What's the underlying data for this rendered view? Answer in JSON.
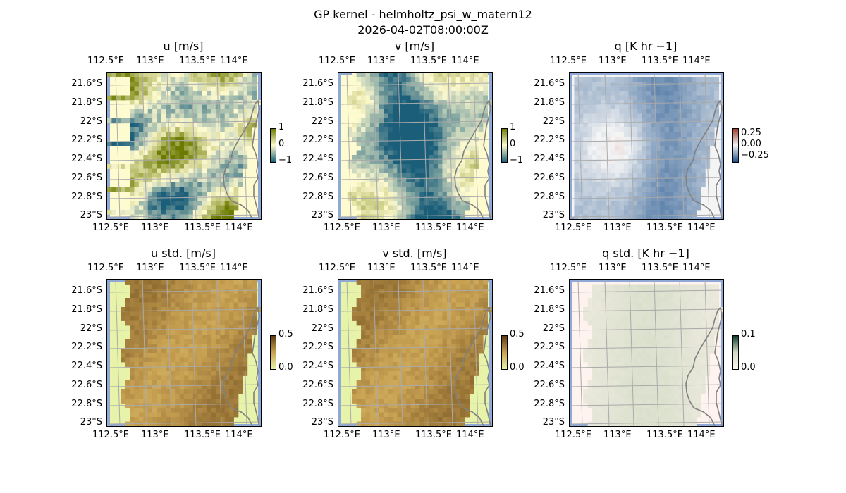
{
  "figure": {
    "title": "GP kernel - helmholtz_psi_w_matern12",
    "subtitle": "2026-04-02T08:00:00Z"
  },
  "chart_data": [
    {
      "type": "heatmap",
      "title": "u [m/s]",
      "lon_ticks": [
        "112.5°E",
        "113°E",
        "113.5°E",
        "114°E"
      ],
      "lat_ticks": [
        "21.6°S",
        "21.8°S",
        "22°S",
        "22.2°S",
        "22.4°S",
        "22.6°S",
        "22.8°S",
        "23°S"
      ],
      "colorbar": {
        "ticks": [
          "1",
          "0",
          "−1"
        ],
        "range": [
          -1,
          1
        ]
      },
      "colors": {
        "low": "#1b5e7a",
        "mid": "#fffbd0",
        "high": "#6b7a00"
      }
    },
    {
      "type": "heatmap",
      "title": "v [m/s]",
      "lon_ticks": [
        "112.5°E",
        "113°E",
        "113.5°E",
        "114°E"
      ],
      "lat_ticks": [
        "21.6°S",
        "21.8°S",
        "22°S",
        "22.2°S",
        "22.4°S",
        "22.6°S",
        "22.8°S",
        "23°S"
      ],
      "colorbar": {
        "ticks": [
          "1",
          "0",
          "−1"
        ],
        "range": [
          -1,
          1
        ]
      },
      "colors": {
        "low": "#1b5e7a",
        "mid": "#fffbd0",
        "high": "#6b7a00"
      }
    },
    {
      "type": "heatmap",
      "title": "q [K hr −1]",
      "lon_ticks": [
        "112.5°E",
        "113°E",
        "113.5°E",
        "114°E"
      ],
      "lat_ticks": [
        "21.6°S",
        "21.8°S",
        "22°S",
        "22.2°S",
        "22.4°S",
        "22.6°S",
        "22.8°S",
        "23°S"
      ],
      "colorbar": {
        "ticks": [
          "0.25",
          "0.00",
          "−0.25"
        ],
        "range": [
          -0.25,
          0.25
        ]
      },
      "colors": {
        "low": "#1b4f8a",
        "mid": "#f5f5f5",
        "high": "#a03a2a"
      }
    },
    {
      "type": "heatmap",
      "title": "u std. [m/s]",
      "lon_ticks": [
        "112.5°E",
        "113°E",
        "113.5°E",
        "114°E"
      ],
      "lat_ticks": [
        "21.6°S",
        "21.8°S",
        "22°S",
        "22.2°S",
        "22.4°S",
        "22.6°S",
        "22.8°S",
        "23°S"
      ],
      "colorbar": {
        "ticks": [
          "0.5",
          "0.0"
        ],
        "range": [
          0,
          0.5
        ]
      },
      "colors": {
        "low": "#e6f3a8",
        "mid": "#c9a253",
        "high": "#5a3a12"
      }
    },
    {
      "type": "heatmap",
      "title": "v std. [m/s]",
      "lon_ticks": [
        "112.5°E",
        "113°E",
        "113.5°E",
        "114°E"
      ],
      "lat_ticks": [
        "21.6°S",
        "21.8°S",
        "22°S",
        "22.2°S",
        "22.4°S",
        "22.6°S",
        "22.8°S",
        "23°S"
      ],
      "colorbar": {
        "ticks": [
          "0.5",
          "0.0"
        ],
        "range": [
          0,
          0.5
        ]
      },
      "colors": {
        "low": "#e6f3a8",
        "mid": "#c9a253",
        "high": "#5a3a12"
      }
    },
    {
      "type": "heatmap",
      "title": "q std. [K hr −1]",
      "lon_ticks": [
        "112.5°E",
        "113°E",
        "113.5°E",
        "114°E"
      ],
      "lat_ticks": [
        "21.6°S",
        "21.8°S",
        "22°S",
        "22.2°S",
        "22.4°S",
        "22.6°S",
        "22.8°S",
        "23°S"
      ],
      "colorbar": {
        "ticks": [
          "0.1",
          "0.0"
        ],
        "range": [
          0,
          0.1
        ]
      },
      "colors": {
        "low": "#fff3ef",
        "mid": "#d3dcc6",
        "high": "#0d3b2e"
      }
    }
  ]
}
